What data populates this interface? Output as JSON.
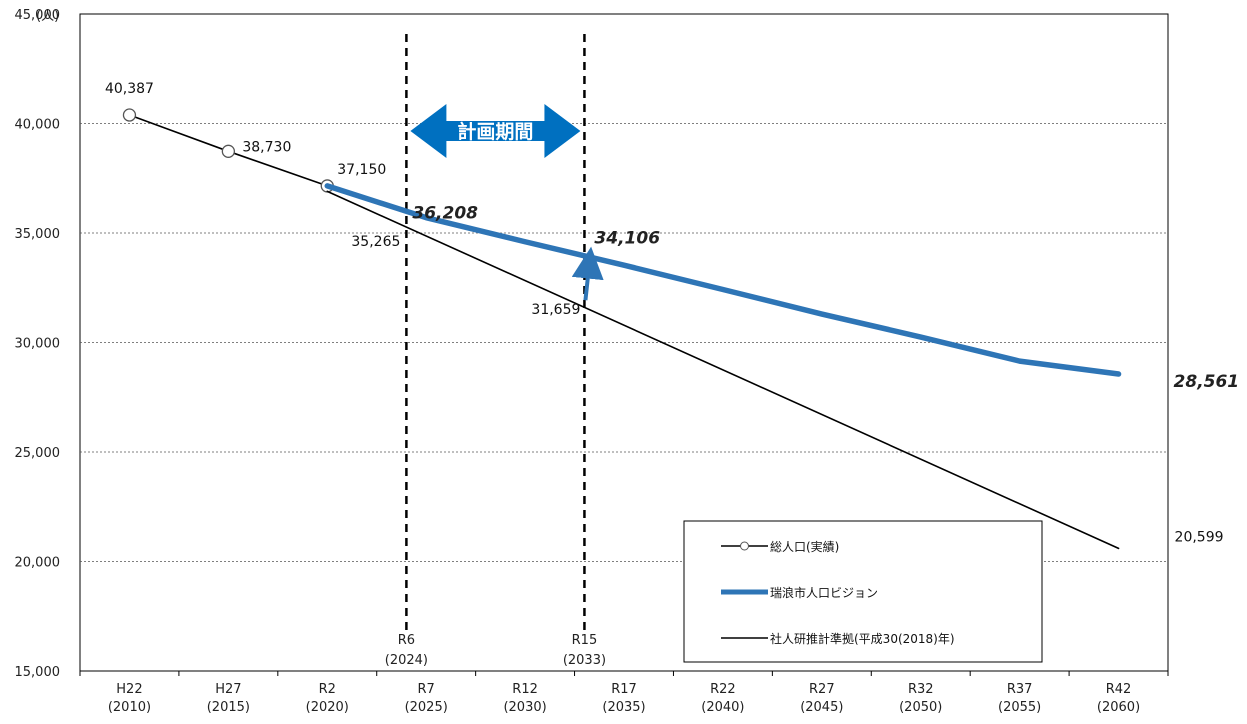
{
  "chart_data": {
    "type": "line",
    "ylabel": "(人)",
    "ylim": [
      15000,
      45000
    ],
    "yticks": [
      15000,
      20000,
      25000,
      30000,
      35000,
      40000,
      45000
    ],
    "ytick_labels": [
      "15,000",
      "20,000",
      "25,000",
      "30,000",
      "35,000",
      "40,000",
      "45,000"
    ],
    "x": [
      2010,
      2015,
      2020,
      2025,
      2030,
      2035,
      2040,
      2045,
      2050,
      2055,
      2060
    ],
    "xtick_labels": [
      [
        "H22",
        "(2010)"
      ],
      [
        "H27",
        "(2015)"
      ],
      [
        "R2",
        "(2020)"
      ],
      [
        "R7",
        "(2025)"
      ],
      [
        "R12",
        "(2030)"
      ],
      [
        "R17",
        "(2035)"
      ],
      [
        "R22",
        "(2040)"
      ],
      [
        "R27",
        "(2045)"
      ],
      [
        "R32",
        "(2050)"
      ],
      [
        "R37",
        "(2055)"
      ],
      [
        "R42",
        "(2060)"
      ]
    ],
    "grid": true,
    "legend_position": "bottom-right",
    "series": [
      {
        "name": "総人口(実績)",
        "style": "line-with-markers",
        "color": "#000000",
        "points": [
          [
            2010,
            40387
          ],
          [
            2015,
            38730
          ],
          [
            2020,
            37150
          ]
        ]
      },
      {
        "name": "瑞浪市人口ビジョン",
        "style": "thick-line",
        "color": "#2e75b6",
        "points": [
          [
            2020,
            37150
          ],
          [
            2025,
            35700
          ],
          [
            2030,
            34600
          ],
          [
            2035,
            33530
          ],
          [
            2040,
            32420
          ],
          [
            2045,
            31300
          ],
          [
            2050,
            30250
          ],
          [
            2055,
            29150
          ],
          [
            2060,
            28561
          ]
        ]
      },
      {
        "name": "社人研推計準拠(平成30(2018)年)",
        "style": "line",
        "color": "#000000",
        "points": [
          [
            2020,
            36900
          ],
          [
            2060,
            20599
          ]
        ]
      }
    ],
    "vertical_markers": [
      {
        "x": 2024,
        "label": "R6",
        "sublabel": "(2024)"
      },
      {
        "x": 2033,
        "label": "R15",
        "sublabel": "(2033)"
      }
    ],
    "period_arrow": {
      "from": 2024,
      "to": 2033,
      "label": "計画期間",
      "color": "#0070c0"
    },
    "annotations": [
      {
        "text": "40,387",
        "x": 2010,
        "y": 40387,
        "style": "normal"
      },
      {
        "text": "38,730",
        "x": 2015,
        "y": 38730,
        "style": "normal"
      },
      {
        "text": "37,150",
        "x": 2020,
        "y": 37150,
        "style": "normal"
      },
      {
        "text": "36,208",
        "x": 2024,
        "y": 36208,
        "style": "emphasis"
      },
      {
        "text": "35,265",
        "x": 2024,
        "y": 35265,
        "style": "normal"
      },
      {
        "text": "34,106",
        "x": 2033,
        "y": 34106,
        "style": "emphasis"
      },
      {
        "text": "31,659",
        "x": 2033,
        "y": 31659,
        "style": "normal"
      },
      {
        "text": "28,561",
        "x": 2060,
        "y": 28561,
        "style": "emphasis"
      },
      {
        "text": "20,599",
        "x": 2060,
        "y": 20599,
        "style": "normal"
      }
    ],
    "up_arrow": {
      "x": 2033,
      "from": 31659,
      "to": 34106,
      "color": "#2e75b6"
    }
  }
}
